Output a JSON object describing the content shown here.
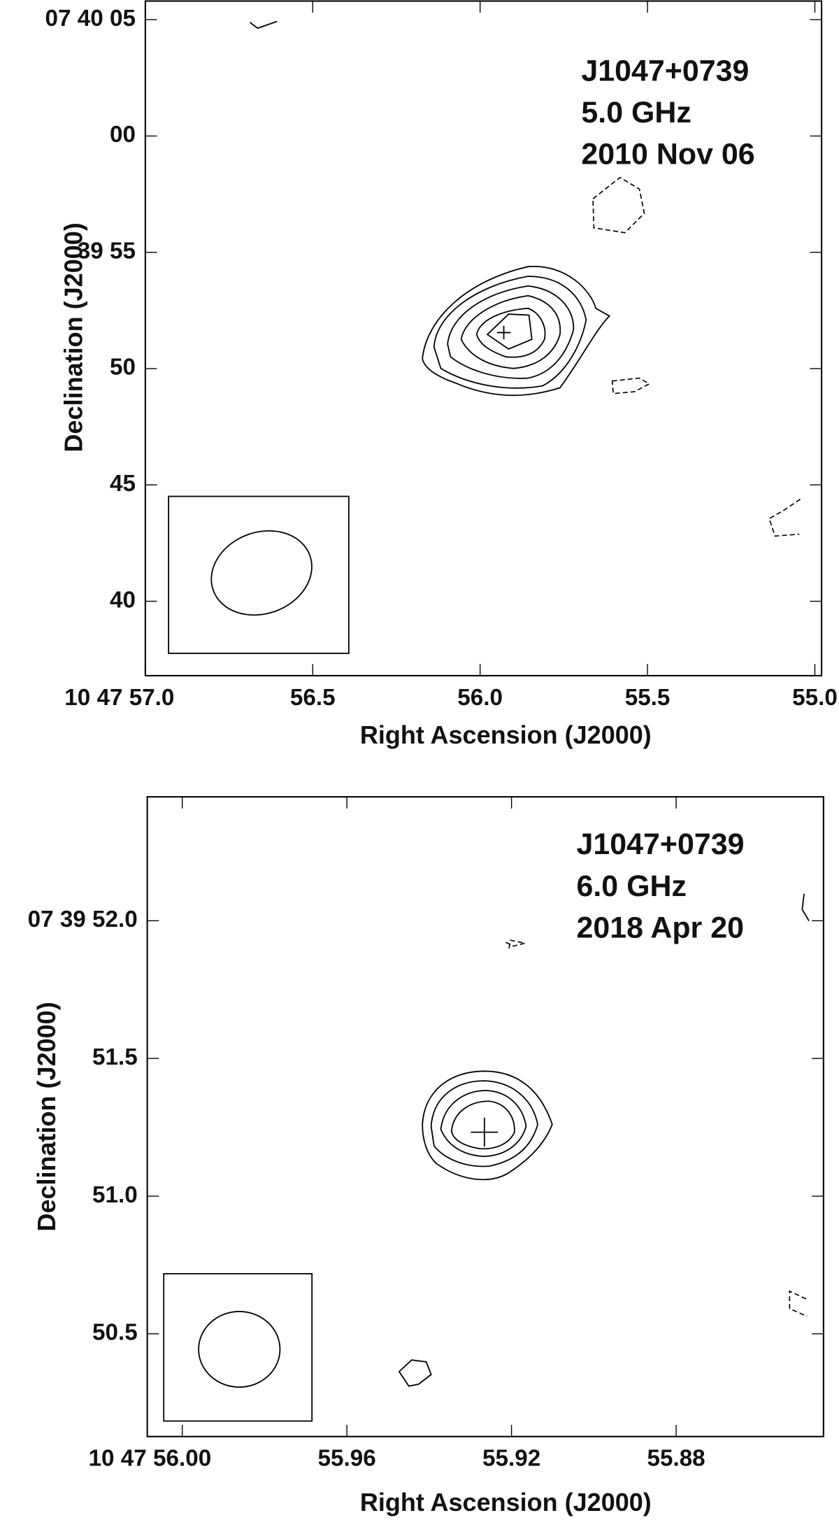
{
  "chart_data": [
    {
      "type": "contour",
      "annotation": [
        "J1047+0739",
        "5.0 GHz",
        "2010 Nov 06"
      ],
      "xlabel": "Right Ascension (J2000)",
      "ylabel": "Declination (J2000)",
      "xlim": [
        57.0,
        54.98
      ],
      "ylim": [
        36.8,
        65.8
      ],
      "xticks": [
        {
          "value": 57.0,
          "label": "10 47 57.0"
        },
        56.5,
        {
          "value": 56,
          "label": "56.0"
        },
        55.5,
        {
          "value": 55,
          "label": "55.0"
        }
      ],
      "yticks": [
        {
          "value": 65,
          "label": "07 40 05"
        },
        {
          "value": 60,
          "label": "00"
        },
        {
          "value": 55,
          "label": "39 55"
        },
        50,
        45,
        40
      ]
    },
    {
      "type": "contour",
      "annotation": [
        "J1047+0739",
        "6.0 GHz",
        "2018 Apr 20"
      ],
      "xlabel": "Right Ascension (J2000)",
      "ylabel": "Declination (J2000)",
      "xlim": [
        56.0085,
        55.8442
      ],
      "ylim": [
        50.127,
        52.45
      ],
      "xticks": [
        {
          "value": 56,
          "label": "10 47 56.00"
        },
        55.96,
        55.92,
        55.88
      ],
      "yticks": [
        {
          "value": 52,
          "label": "07 39 52.0"
        },
        51.5,
        {
          "value": 51,
          "label": "51.0"
        },
        50.5
      ]
    }
  ]
}
